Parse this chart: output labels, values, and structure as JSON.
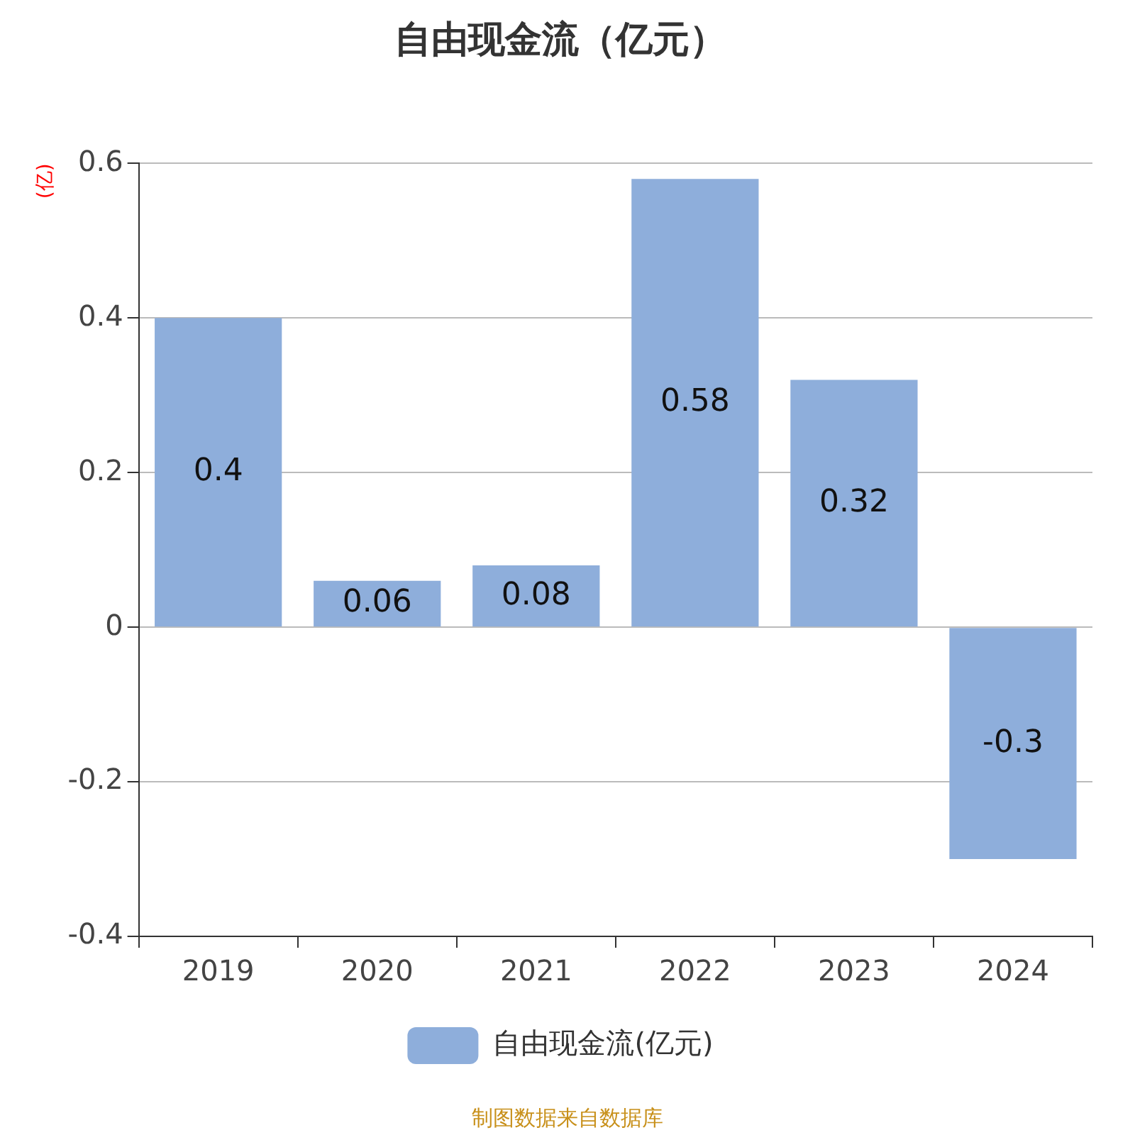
{
  "chart_data": {
    "type": "bar",
    "title": "自由现金流（亿元）",
    "ylabel": "(亿)",
    "categories": [
      "2019",
      "2020",
      "2021",
      "2022",
      "2023",
      "2024"
    ],
    "series": [
      {
        "name": "自由现金流(亿元)",
        "color": "#8eaedb",
        "values": [
          0.4,
          0.06,
          0.08,
          0.58,
          0.32,
          -0.3
        ]
      }
    ],
    "ylim": [
      -0.4,
      0.6
    ],
    "yticks": [
      -0.4,
      -0.2,
      0,
      0.2,
      0.4,
      0.6
    ],
    "grid": "y",
    "legend": "bottom",
    "data_labels": true,
    "annotations": [
      "制图数据来自数据库"
    ]
  }
}
